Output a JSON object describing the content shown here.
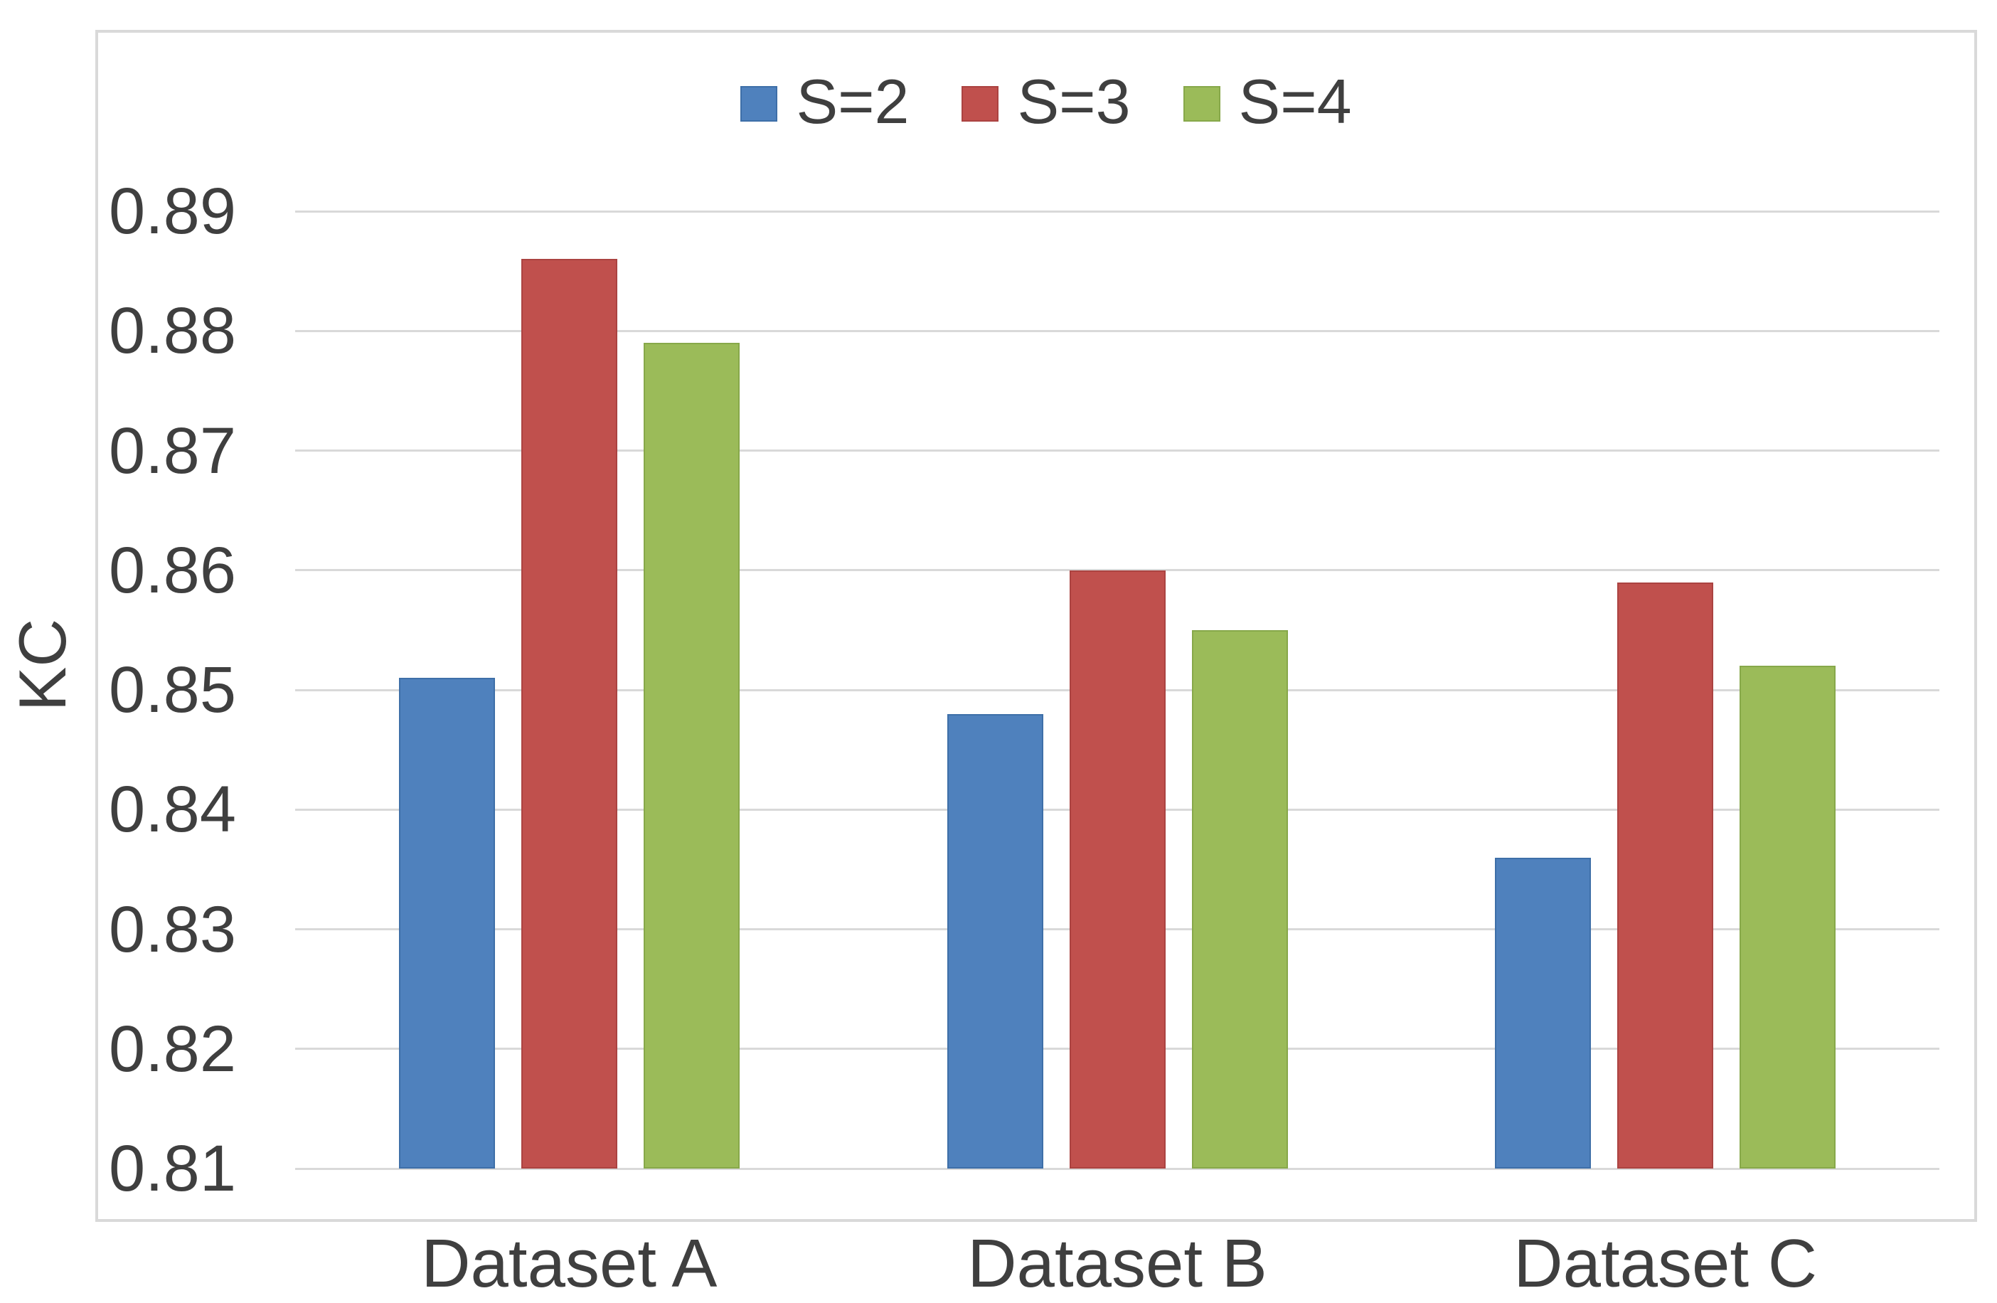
{
  "chart_data": {
    "type": "bar",
    "title": "",
    "xlabel": "",
    "ylabel": "KC",
    "categories": [
      "Dataset A",
      "Dataset B",
      "Dataset C"
    ],
    "series": [
      {
        "name": "S=2",
        "color": "#4f81bd",
        "edge_color": "#3e6fa8",
        "values": [
          0.851,
          0.848,
          0.836
        ]
      },
      {
        "name": "S=3",
        "color": "#c0504d",
        "edge_color": "#ab4341",
        "values": [
          0.886,
          0.86,
          0.859
        ]
      },
      {
        "name": "S=4",
        "color": "#9bbb59",
        "edge_color": "#87a84a",
        "values": [
          0.879,
          0.855,
          0.852
        ]
      }
    ],
    "ylim": [
      0.81,
      0.89
    ],
    "ytick_labels": [
      "0.89",
      "0.88",
      "0.87",
      "0.86",
      "0.85",
      "0.84",
      "0.83",
      "0.82",
      "0.81"
    ],
    "grid": true,
    "legend_position": "top-center",
    "colors": {
      "gridline": "#d9d9d9",
      "chart_border": "#d9d9d9",
      "text": "#3f3f3f",
      "background": "#ffffff"
    }
  }
}
